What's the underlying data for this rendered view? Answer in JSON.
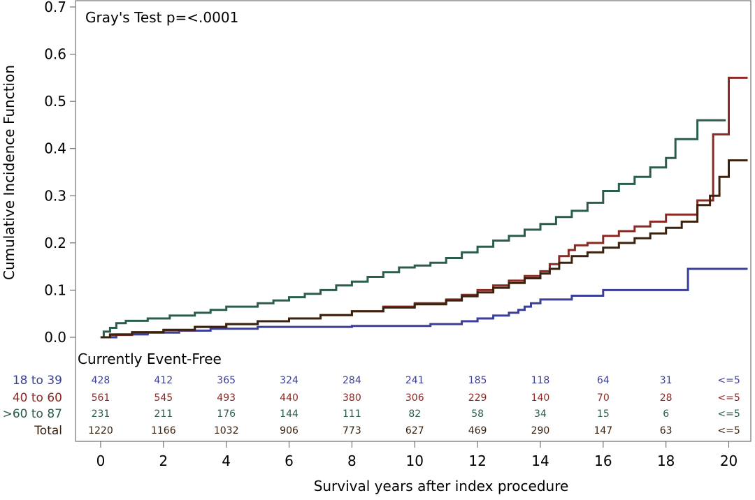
{
  "chart_data": {
    "type": "line",
    "title": "",
    "annotation": "Gray's Test p=<.0001",
    "xlabel": "Survival years after index procedure",
    "ylabel": "Cumulative Incidence Function",
    "xlim": [
      -0.8,
      20.7
    ],
    "ylim": [
      0,
      0.7
    ],
    "x_ticks": [
      0,
      2,
      4,
      6,
      8,
      10,
      12,
      14,
      16,
      18,
      20
    ],
    "y_ticks": [
      0.0,
      0.1,
      0.2,
      0.3,
      0.4,
      0.5,
      0.6,
      0.7
    ],
    "y_tick_labels": [
      "0.0",
      "0.1",
      "0.2",
      "0.3",
      "0.4",
      "0.5",
      "0.6",
      "0.7"
    ],
    "series": [
      {
        "name": "18 to 39",
        "color": "#3b3f97",
        "x": [
          0,
          0.5,
          1.5,
          2.5,
          3.5,
          5,
          8,
          10.5,
          11.5,
          12,
          12.5,
          13,
          13.3,
          13.5,
          13.7,
          14,
          15,
          16,
          18,
          18.7,
          20.6
        ],
        "y": [
          0,
          0.006,
          0.01,
          0.014,
          0.018,
          0.022,
          0.024,
          0.028,
          0.034,
          0.04,
          0.046,
          0.052,
          0.058,
          0.065,
          0.072,
          0.08,
          0.088,
          0.1,
          0.1,
          0.145,
          0.145
        ]
      },
      {
        "name": "40 to 60",
        "color": "#8b2a25",
        "x": [
          0,
          0.3,
          1,
          2,
          3,
          4,
          5,
          6,
          7,
          8,
          9,
          10,
          11,
          11.5,
          12,
          12.5,
          13,
          13.5,
          14,
          14.3,
          14.6,
          14.9,
          15.1,
          15.5,
          16,
          16.5,
          17,
          17.5,
          18,
          18.5,
          19,
          19.2,
          19.5,
          19.9,
          20,
          20.6
        ],
        "y": [
          0,
          0.005,
          0.01,
          0.015,
          0.022,
          0.028,
          0.034,
          0.04,
          0.047,
          0.055,
          0.065,
          0.072,
          0.08,
          0.09,
          0.1,
          0.11,
          0.12,
          0.13,
          0.14,
          0.155,
          0.172,
          0.185,
          0.195,
          0.2,
          0.215,
          0.225,
          0.235,
          0.245,
          0.26,
          0.26,
          0.29,
          0.29,
          0.43,
          0.43,
          0.55,
          0.55
        ]
      },
      {
        "name": ">60 to 87",
        "color": "#2b5d4f",
        "x": [
          0,
          0.1,
          0.3,
          0.5,
          0.8,
          1.5,
          2.2,
          3,
          3.5,
          4,
          5,
          5.5,
          6,
          6.5,
          7,
          7.5,
          8,
          8.5,
          9,
          9.5,
          10,
          10.5,
          11,
          11.5,
          12,
          12.5,
          13,
          13.5,
          14,
          14.5,
          15,
          15.5,
          16,
          16.5,
          17,
          17.5,
          18,
          18.3,
          19,
          19.9
        ],
        "y": [
          0,
          0.012,
          0.02,
          0.03,
          0.035,
          0.04,
          0.046,
          0.052,
          0.058,
          0.065,
          0.072,
          0.078,
          0.085,
          0.092,
          0.1,
          0.11,
          0.118,
          0.128,
          0.138,
          0.148,
          0.152,
          0.158,
          0.168,
          0.18,
          0.192,
          0.205,
          0.215,
          0.228,
          0.24,
          0.255,
          0.268,
          0.285,
          0.31,
          0.325,
          0.34,
          0.36,
          0.38,
          0.42,
          0.46,
          0.46
        ]
      },
      {
        "name": "Total",
        "color": "#3a220f",
        "x": [
          0,
          0.3,
          1,
          2,
          3,
          4,
          5,
          6,
          7,
          8,
          9,
          10,
          11,
          11.5,
          12,
          12.5,
          13,
          13.5,
          14,
          14.3,
          14.6,
          15,
          15.5,
          16,
          16.5,
          17,
          17.5,
          18,
          18.5,
          19,
          19.4,
          19.7,
          20,
          20.6
        ],
        "y": [
          0,
          0.006,
          0.011,
          0.016,
          0.022,
          0.028,
          0.034,
          0.04,
          0.047,
          0.055,
          0.063,
          0.07,
          0.078,
          0.087,
          0.095,
          0.105,
          0.115,
          0.125,
          0.135,
          0.145,
          0.158,
          0.172,
          0.18,
          0.19,
          0.2,
          0.21,
          0.22,
          0.232,
          0.245,
          0.28,
          0.3,
          0.34,
          0.375,
          0.375
        ]
      }
    ],
    "risk_table": {
      "title": "Currently Event-Free",
      "times": [
        0,
        2,
        4,
        6,
        8,
        10,
        12,
        14,
        16,
        18,
        20
      ],
      "rows": [
        {
          "label": "18 to 39",
          "color": "#3b3f97",
          "values": [
            "428",
            "412",
            "365",
            "324",
            "284",
            "241",
            "185",
            "118",
            "64",
            "31",
            "<=5"
          ]
        },
        {
          "label": "40 to 60",
          "color": "#8b2a25",
          "values": [
            "561",
            "545",
            "493",
            "440",
            "380",
            "306",
            "229",
            "140",
            "70",
            "28",
            "<=5"
          ]
        },
        {
          "label": ">60 to 87",
          "color": "#2b5d4f",
          "values": [
            "231",
            "211",
            "176",
            "144",
            "111",
            "82",
            "58",
            "34",
            "15",
            "6",
            "<=5"
          ]
        },
        {
          "label": "Total",
          "color": "#3a220f",
          "values": [
            "1220",
            "1166",
            "1032",
            "906",
            "773",
            "627",
            "469",
            "290",
            "147",
            "63",
            "<=5"
          ]
        }
      ]
    }
  }
}
